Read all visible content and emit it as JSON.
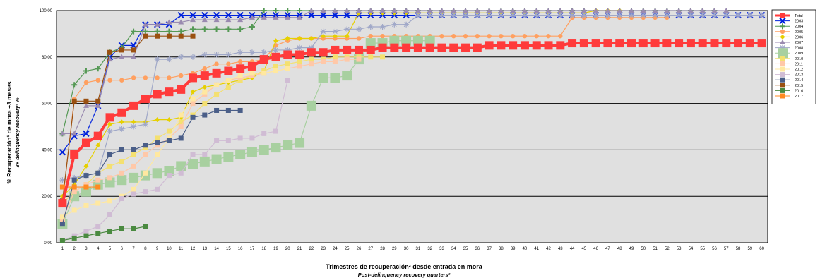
{
  "chart_data": {
    "type": "line",
    "ylabel": "% Recuperación¹ de mora +3 meses",
    "ylabel_sub": "3+ delinquency recovery¹ %",
    "xlabel": "Trimestres de recuperación² desde entrada en mora",
    "xlabel_sub": "Post-delinquency recovery quarters²",
    "ylim": [
      0,
      100
    ],
    "yticks": [
      "0,00",
      "20,00",
      "40,00",
      "60,00",
      "80,00",
      "100,00"
    ],
    "xlim": [
      1,
      60
    ],
    "grid": "horizontal",
    "legend_position": "right",
    "background": "#e0e0e0",
    "series": [
      {
        "name": "Total",
        "color": "#ff3b3b",
        "marker": "square",
        "width": 4,
        "values": [
          17,
          38,
          43,
          46,
          54,
          56,
          59,
          62,
          64,
          65,
          66,
          71,
          72,
          73,
          74,
          75,
          76,
          79,
          80,
          81,
          81,
          82,
          82,
          83,
          83,
          83,
          83,
          84,
          84,
          84,
          84,
          84,
          84,
          84,
          84,
          84,
          85,
          85,
          85,
          85,
          85,
          85,
          85,
          86,
          86,
          86,
          86,
          86,
          86,
          86,
          86,
          86,
          86,
          86,
          86,
          86,
          86,
          86,
          86,
          86
        ]
      },
      {
        "name": "2003",
        "color": "#0022dd",
        "marker": "x",
        "width": 1.2,
        "values": [
          39,
          46,
          47,
          59,
          80,
          85,
          85,
          94,
          94,
          94,
          98,
          98,
          98,
          98,
          98,
          98,
          98,
          98,
          98,
          98,
          98,
          98,
          98,
          98,
          98,
          98,
          98,
          98,
          98,
          98,
          98,
          98,
          98,
          98,
          98,
          98,
          98,
          98,
          98,
          98,
          98,
          98,
          98,
          98,
          98,
          98,
          98,
          98,
          98,
          98,
          98,
          98,
          98,
          98,
          98,
          98,
          98,
          98,
          98,
          98
        ]
      },
      {
        "name": "2004",
        "color": "#559955",
        "marker": "plus",
        "width": 1.2,
        "values": [
          47,
          68,
          74,
          75,
          82,
          84,
          91,
          91,
          91,
          91,
          91,
          92,
          92,
          92,
          92,
          92,
          93,
          100,
          100,
          100,
          100,
          100,
          100,
          100,
          100,
          100,
          100,
          100,
          100,
          100,
          100,
          100,
          100,
          100,
          100,
          100,
          100,
          100,
          100,
          100,
          100,
          100,
          100,
          100,
          100,
          100,
          100,
          100,
          100,
          100,
          100,
          100,
          100,
          100,
          100,
          100
        ]
      },
      {
        "name": "2005",
        "color": "#ffa060",
        "marker": "circle",
        "width": 1.2,
        "values": [
          17,
          62,
          69,
          70,
          70,
          70,
          71,
          71,
          71,
          71,
          72,
          73,
          75,
          77,
          77,
          78,
          78,
          79,
          85,
          87,
          88,
          88,
          88,
          88,
          88,
          88,
          89,
          89,
          89,
          89,
          89,
          89,
          89,
          89,
          89,
          89,
          89,
          89,
          89,
          89,
          89,
          89,
          89,
          97,
          97,
          97,
          97,
          97,
          97,
          97,
          97,
          97
        ]
      },
      {
        "name": "2006",
        "color": "#e6d000",
        "marker": "diamond",
        "width": 1.2,
        "values": [
          20,
          25,
          33,
          42,
          51,
          52,
          52,
          52,
          53,
          53,
          54,
          65,
          67,
          68,
          69,
          70,
          71,
          74,
          87,
          88,
          88,
          88,
          89,
          89,
          89,
          99,
          99,
          99,
          99,
          99,
          99,
          99,
          99,
          99,
          99,
          99,
          99,
          99,
          99,
          99,
          99,
          99,
          99,
          99,
          99,
          100,
          100,
          100
        ]
      },
      {
        "name": "2007",
        "color": "#9a8ab0",
        "marker": "triangle",
        "width": 1.2,
        "values": [
          47,
          47,
          59,
          59,
          79,
          80,
          80,
          94,
          94,
          95,
          95,
          96,
          96,
          96,
          96,
          96,
          97,
          97,
          97,
          97,
          97,
          100,
          100,
          100,
          100,
          100,
          100,
          100,
          100,
          100,
          100,
          100,
          100,
          100,
          100,
          100,
          100,
          100,
          100,
          100,
          100,
          100,
          100,
          100,
          100,
          100,
          100,
          100,
          100,
          100,
          100,
          100,
          100,
          100,
          100,
          100,
          100
        ]
      },
      {
        "name": "2008",
        "color": "#a0a8c8",
        "marker": "star",
        "width": 1.2,
        "values": [
          27,
          28,
          29,
          30,
          48,
          49,
          50,
          51,
          79,
          79,
          80,
          80,
          81,
          81,
          81,
          82,
          82,
          82,
          83,
          83,
          84,
          84,
          91,
          91,
          92,
          92,
          93,
          93,
          94,
          94,
          98,
          98,
          98,
          98,
          98,
          98,
          98,
          98,
          98,
          98,
          98,
          98,
          98,
          98,
          98,
          98,
          98,
          98,
          98,
          98,
          98,
          98,
          98,
          98,
          98,
          98,
          98,
          98,
          98,
          98
        ]
      },
      {
        "name": "2009",
        "color": "#a8d0a0",
        "marker": "bigsquare",
        "width": 1.2,
        "values": [
          8,
          20,
          22,
          25,
          26,
          27,
          28,
          29,
          30,
          31,
          33,
          34,
          35,
          36,
          37,
          38,
          39,
          40,
          41,
          42,
          43,
          59,
          71,
          71,
          72,
          79,
          86,
          86,
          87,
          87,
          87,
          87
        ]
      },
      {
        "name": "2010",
        "color": "#f4e070",
        "marker": "square",
        "width": 1.2,
        "values": [
          17,
          22,
          25,
          30,
          33,
          35,
          38,
          41,
          45,
          48,
          52,
          55,
          60,
          64,
          67,
          70,
          72,
          74,
          76,
          77,
          78,
          79,
          79,
          80,
          80,
          80,
          80,
          80
        ]
      },
      {
        "name": "2011",
        "color": "#ffc8a8",
        "marker": "square",
        "width": 1.2,
        "values": [
          10,
          22,
          25,
          27,
          28,
          30,
          33,
          38,
          42,
          45,
          50,
          60,
          64,
          68,
          70,
          71,
          72,
          73,
          74,
          75,
          76,
          77,
          78,
          78,
          79,
          79
        ]
      },
      {
        "name": "2012",
        "color": "#ffe8a0",
        "marker": "square",
        "width": 1.2,
        "values": [
          11,
          14,
          16,
          17,
          18,
          20,
          23,
          30,
          38,
          45,
          55,
          62,
          65,
          68,
          70,
          72,
          73,
          73,
          74,
          75
        ]
      },
      {
        "name": "2013",
        "color": "#d0bcd4",
        "marker": "square",
        "width": 1.2,
        "values": [
          1,
          3,
          5,
          7,
          12,
          19,
          21,
          22,
          23,
          29,
          30,
          38,
          38,
          44,
          44,
          45,
          45,
          47,
          48,
          70
        ]
      },
      {
        "name": "2014",
        "color": "#4a5e88",
        "marker": "square",
        "width": 1.2,
        "values": [
          8,
          27,
          29,
          30,
          38,
          40,
          40,
          42,
          43,
          44,
          45,
          54,
          55,
          57,
          57,
          57
        ]
      },
      {
        "name": "2015",
        "color": "#9a5010",
        "marker": "square",
        "width": 1.2,
        "values": [
          18,
          61,
          61,
          61,
          82,
          83,
          83,
          89,
          89,
          89,
          89,
          89
        ]
      },
      {
        "name": "2016",
        "color": "#4a8a40",
        "marker": "square",
        "width": 1.2,
        "values": [
          1,
          2,
          3,
          4,
          5,
          6,
          6,
          7
        ]
      },
      {
        "name": "2017",
        "color": "#ff8a20",
        "marker": "square",
        "width": 1.2,
        "values": [
          24,
          24,
          24,
          24
        ]
      }
    ]
  }
}
